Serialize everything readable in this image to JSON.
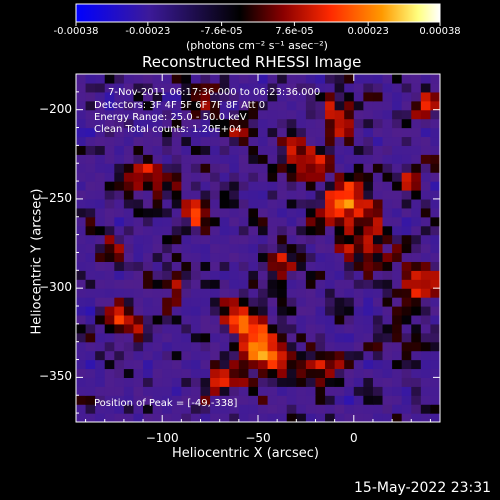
{
  "colorbar": {
    "ticks": [
      "-0.00038",
      "-0.00023",
      "-7.6e-05",
      "7.6e-05",
      "0.00023",
      "0.00038"
    ],
    "tick_values": [
      -0.00038,
      -0.00023,
      -7.6e-05,
      7.6e-05,
      0.00023,
      0.00038
    ],
    "range": [
      -0.00038,
      0.00038
    ],
    "unit_label": "(photons cm⁻² s⁻¹ asec⁻²)",
    "colors": [
      "#0000ff",
      "#3c1a9a",
      "#000000",
      "#8b0000",
      "#ff2a00",
      "#ff9900",
      "#ffff80",
      "#ffffff"
    ]
  },
  "chart_data": {
    "type": "heatmap",
    "title": "Reconstructed RHESSI Image",
    "xlabel": "Heliocentric X (arcsec)",
    "ylabel": "Heliocentric Y (arcsec)",
    "xlim": [
      -145,
      45
    ],
    "ylim": [
      -375,
      -180
    ],
    "x_ticks": [
      -100,
      -50,
      0
    ],
    "x_tick_labels": [
      "−100",
      "−50",
      "0"
    ],
    "y_ticks": [
      -200,
      -250,
      -300,
      -350
    ],
    "y_tick_labels": [
      "−200",
      "−250",
      "−300",
      "−350"
    ],
    "annotations": [
      "7-Nov-2011 06:17:36.000 to 06:23:36.000",
      "Detectors: 3F 4F 5F 6F 7F 8F  Att 0",
      "Energy Range: 25.0 - 50.0 keV",
      "Clean     Total counts: 1.20E+04",
      "Position of Peak = [-49,-338]"
    ],
    "grid": false
  },
  "footer": {
    "timestamp": "15-May-2022 23:31"
  }
}
